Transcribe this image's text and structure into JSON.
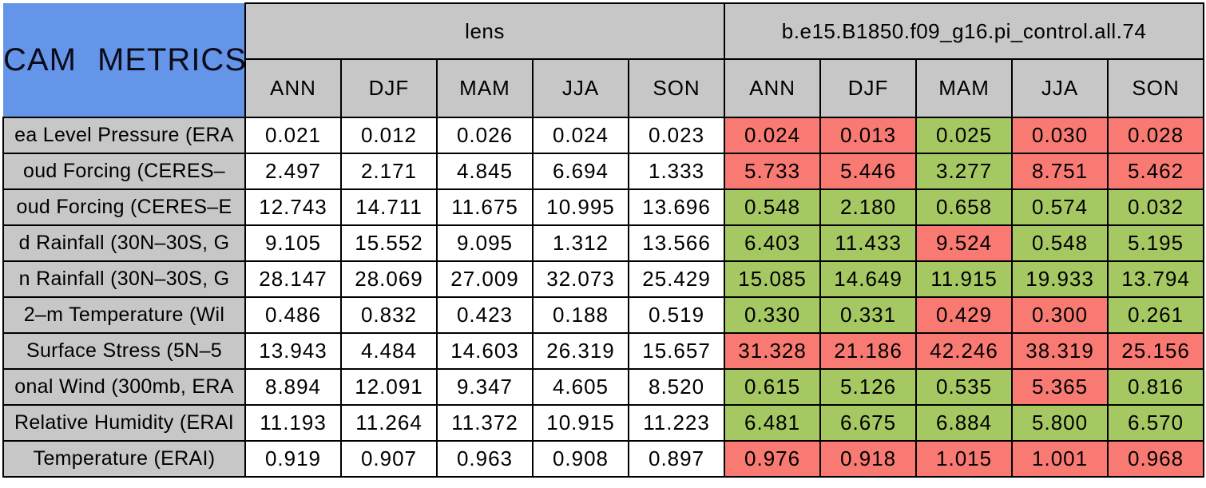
{
  "colors": {
    "title_bg": "#6495e8",
    "header_bg": "#c7c7c7",
    "value_bg": "#ffffff",
    "better_bg": "#a5c863",
    "worse_bg": "#f87a72",
    "border": "#000000"
  },
  "chart_data": {
    "type": "table",
    "title": "CAM METRICS",
    "column_groups": [
      {
        "label": "lens",
        "columns": [
          "ANN",
          "DJF",
          "MAM",
          "JJA",
          "SON"
        ]
      },
      {
        "label": "b.e15.B1850.f09_g16.pi_control.all.74",
        "columns": [
          "ANN",
          "DJF",
          "MAM",
          "JJA",
          "SON"
        ]
      }
    ],
    "cell_color_legend": {
      "better": "green",
      "worse": "red"
    },
    "rows": [
      {
        "label": "ea Level Pressure (ERA",
        "lens": [
          "0.021",
          "0.012",
          "0.026",
          "0.024",
          "0.023"
        ],
        "control": [
          "0.024",
          "0.013",
          "0.025",
          "0.030",
          "0.028"
        ],
        "control_status": [
          "worse",
          "worse",
          "better",
          "worse",
          "worse"
        ]
      },
      {
        "label": "oud Forcing (CERES–",
        "lens": [
          "2.497",
          "2.171",
          "4.845",
          "6.694",
          "1.333"
        ],
        "control": [
          "5.733",
          "5.446",
          "3.277",
          "8.751",
          "5.462"
        ],
        "control_status": [
          "worse",
          "worse",
          "better",
          "worse",
          "worse"
        ]
      },
      {
        "label": "oud Forcing (CERES–E",
        "lens": [
          "12.743",
          "14.711",
          "11.675",
          "10.995",
          "13.696"
        ],
        "control": [
          "0.548",
          "2.180",
          "0.658",
          "0.574",
          "0.032"
        ],
        "control_status": [
          "better",
          "better",
          "better",
          "better",
          "better"
        ]
      },
      {
        "label": "d Rainfall (30N–30S, G",
        "lens": [
          "9.105",
          "15.552",
          "9.095",
          "1.312",
          "13.566"
        ],
        "control": [
          "6.403",
          "11.433",
          "9.524",
          "0.548",
          "5.195"
        ],
        "control_status": [
          "better",
          "better",
          "worse",
          "better",
          "better"
        ]
      },
      {
        "label": "n Rainfall (30N–30S, G",
        "lens": [
          "28.147",
          "28.069",
          "27.009",
          "32.073",
          "25.429"
        ],
        "control": [
          "15.085",
          "14.649",
          "11.915",
          "19.933",
          "13.794"
        ],
        "control_status": [
          "better",
          "better",
          "better",
          "better",
          "better"
        ]
      },
      {
        "label": "2–m Temperature (Wil",
        "lens": [
          "0.486",
          "0.832",
          "0.423",
          "0.188",
          "0.519"
        ],
        "control": [
          "0.330",
          "0.331",
          "0.429",
          "0.300",
          "0.261"
        ],
        "control_status": [
          "better",
          "better",
          "worse",
          "worse",
          "better"
        ]
      },
      {
        "label": "Surface Stress (5N–5",
        "lens": [
          "13.943",
          "4.484",
          "14.603",
          "26.319",
          "15.657"
        ],
        "control": [
          "31.328",
          "21.186",
          "42.246",
          "38.319",
          "25.156"
        ],
        "control_status": [
          "worse",
          "worse",
          "worse",
          "worse",
          "worse"
        ]
      },
      {
        "label": "onal Wind (300mb, ERA",
        "lens": [
          "8.894",
          "12.091",
          "9.347",
          "4.605",
          "8.520"
        ],
        "control": [
          "0.615",
          "5.126",
          "0.535",
          "5.365",
          "0.816"
        ],
        "control_status": [
          "better",
          "better",
          "better",
          "worse",
          "better"
        ]
      },
      {
        "label": "Relative Humidity (ERAI",
        "lens": [
          "11.193",
          "11.264",
          "11.372",
          "10.915",
          "11.223"
        ],
        "control": [
          "6.481",
          "6.675",
          "6.884",
          "5.800",
          "6.570"
        ],
        "control_status": [
          "better",
          "better",
          "better",
          "better",
          "better"
        ]
      },
      {
        "label": "Temperature (ERAI)",
        "lens": [
          "0.919",
          "0.907",
          "0.963",
          "0.908",
          "0.897"
        ],
        "control": [
          "0.976",
          "0.918",
          "1.015",
          "1.001",
          "0.968"
        ],
        "control_status": [
          "worse",
          "worse",
          "worse",
          "worse",
          "worse"
        ]
      }
    ]
  }
}
